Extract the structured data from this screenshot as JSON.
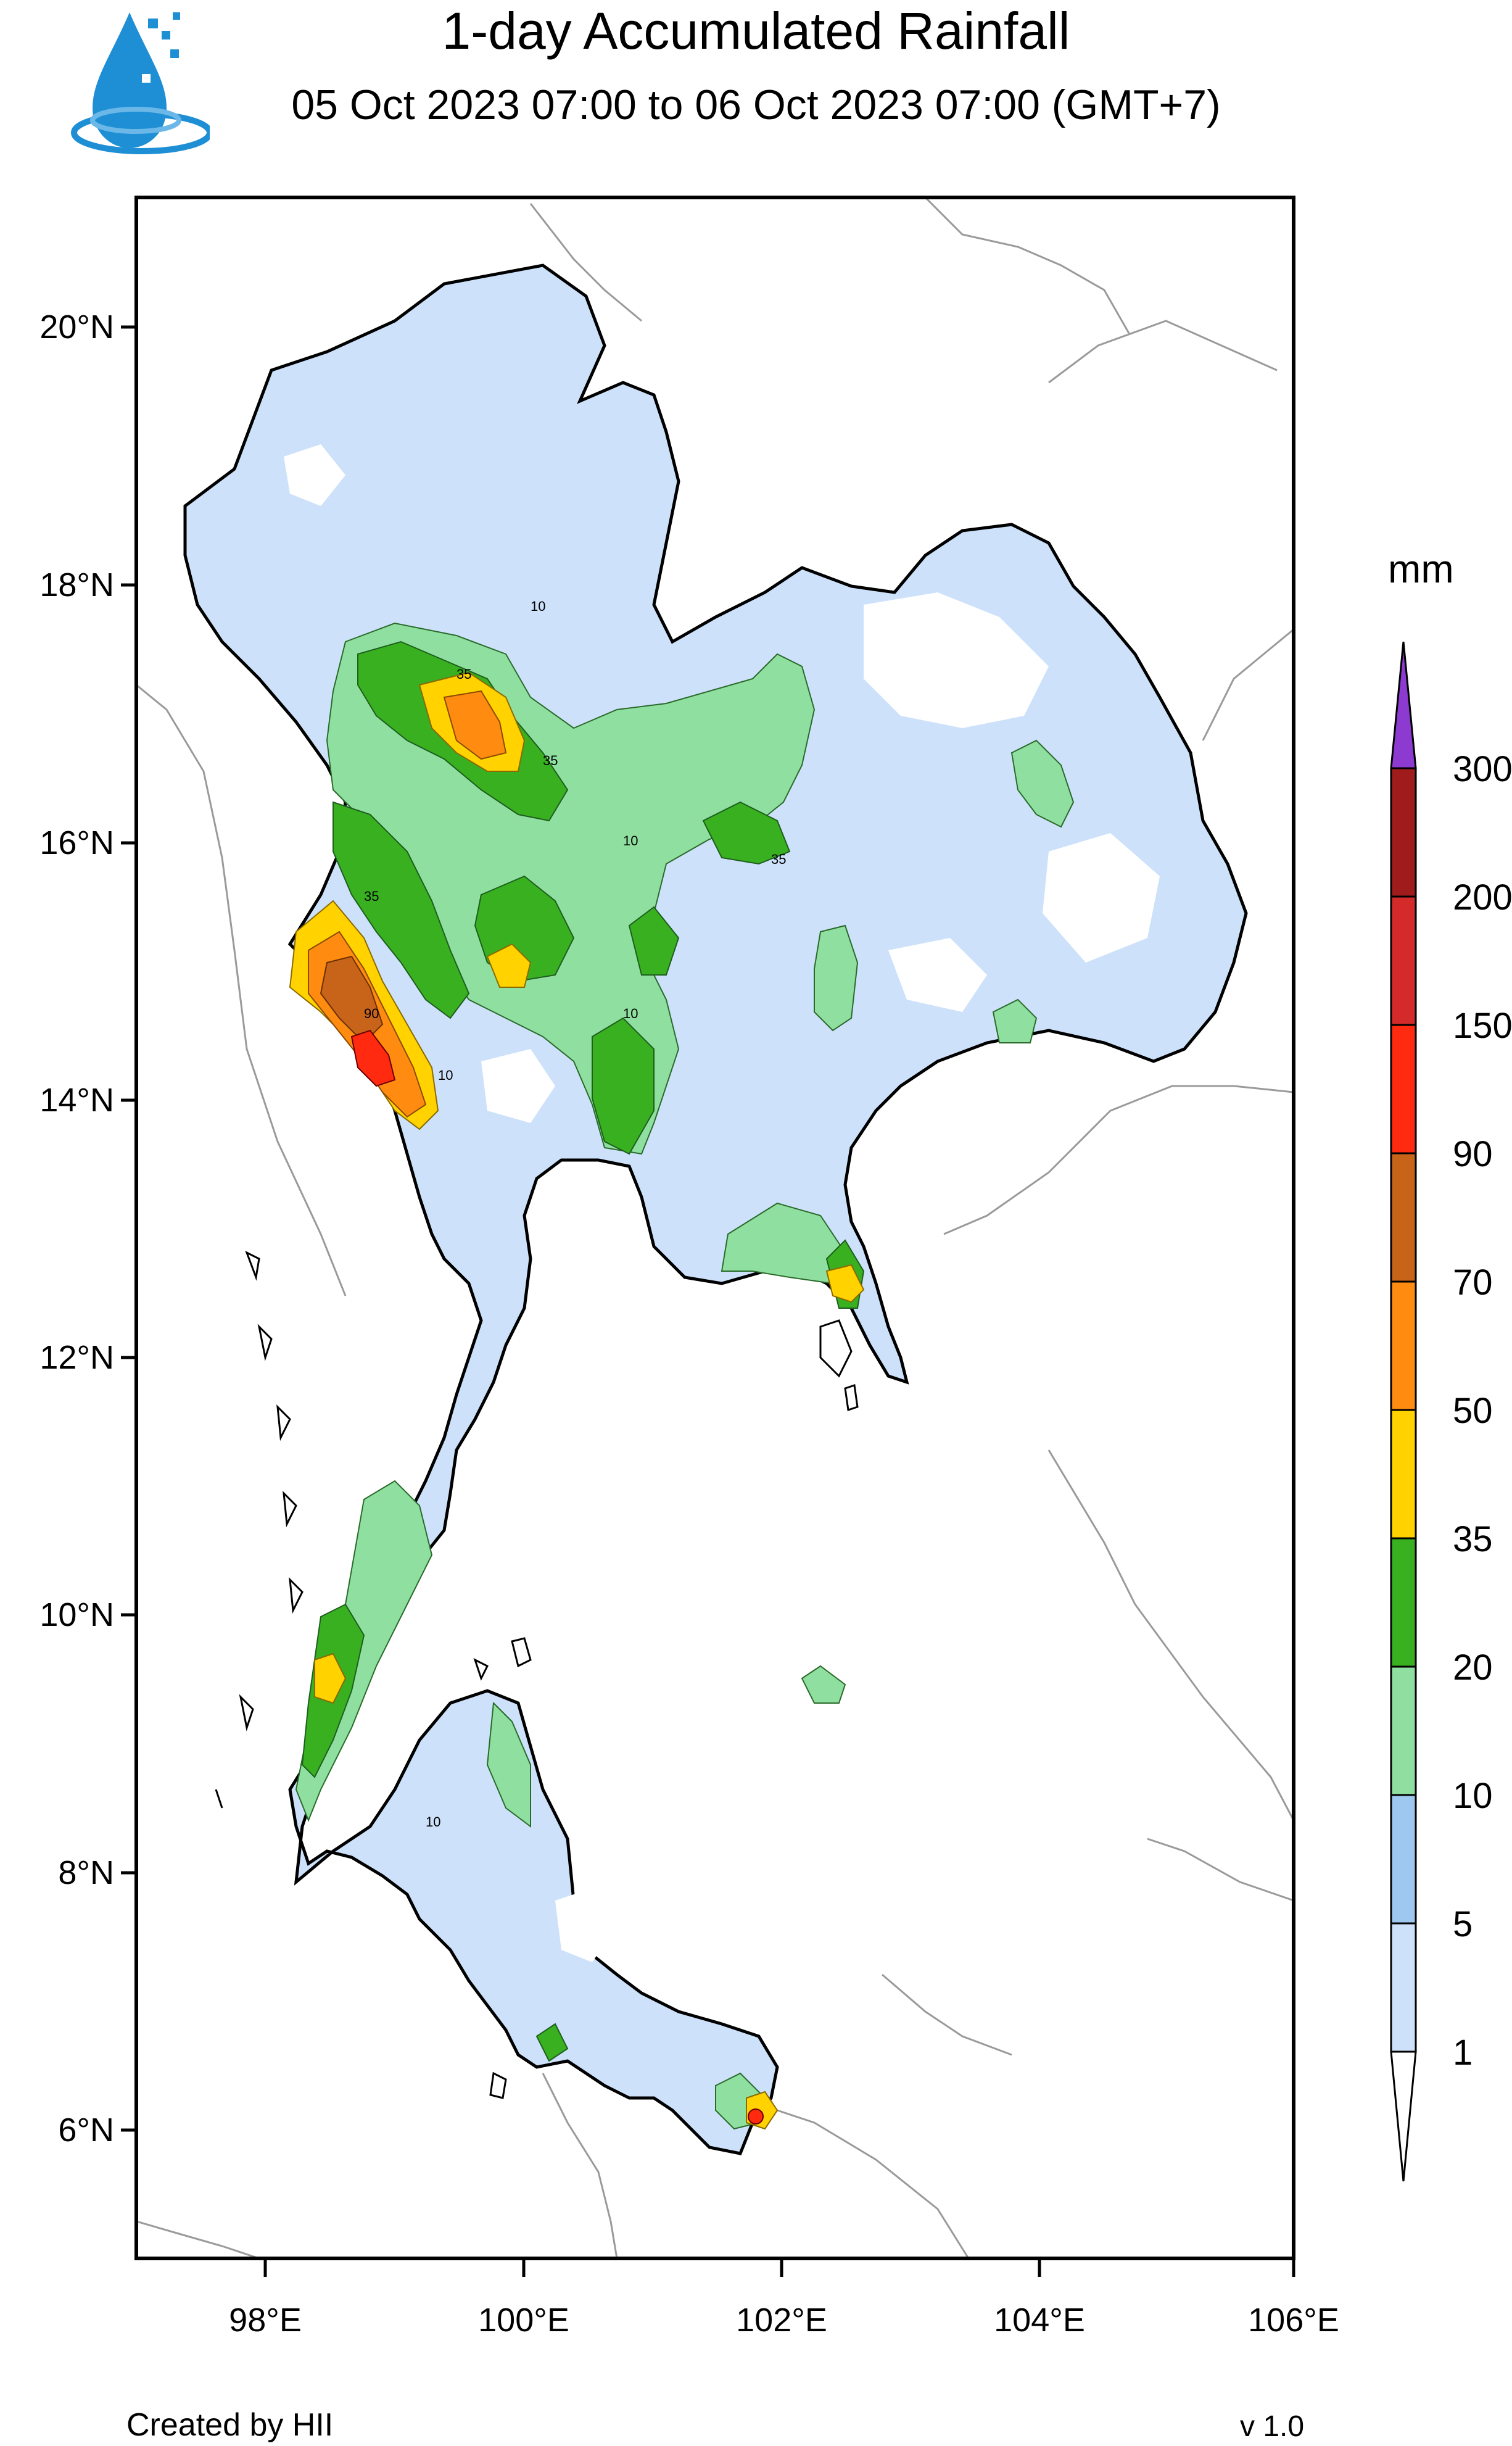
{
  "header": {
    "title": "1-day Accumulated Rainfall",
    "subtitle": "05 Oct 2023 07:00 to 06 Oct 2023 07:00 (GMT+7)"
  },
  "logo": {
    "icon": "water-drop-logo-icon",
    "color": "#1e8fd5"
  },
  "map": {
    "lat_labels": [
      "20°N",
      "18°N",
      "16°N",
      "14°N",
      "12°N",
      "10°N",
      "8°N",
      "6°N"
    ],
    "lon_labels": [
      "98°E",
      "100°E",
      "102°E",
      "104°E",
      "106°E"
    ],
    "contour_labels": [
      "10",
      "35",
      "90"
    ],
    "region": "Thailand"
  },
  "colorbar": {
    "unit": "mm",
    "levels": [
      "300",
      "200",
      "150",
      "90",
      "70",
      "50",
      "35",
      "20",
      "10",
      "5",
      "1"
    ],
    "colors": [
      "#a01c1c",
      "#d42a2a",
      "#ff2a10",
      "#c8641a",
      "#ff8c10",
      "#ffd200",
      "#38b020",
      "#8fe0a0",
      "#9ec8f0",
      "#cde2fa",
      "#ffffff"
    ],
    "top_color": "#8c3ad0"
  },
  "footer": {
    "credit": "Created by HII",
    "version": "v 1.0"
  }
}
